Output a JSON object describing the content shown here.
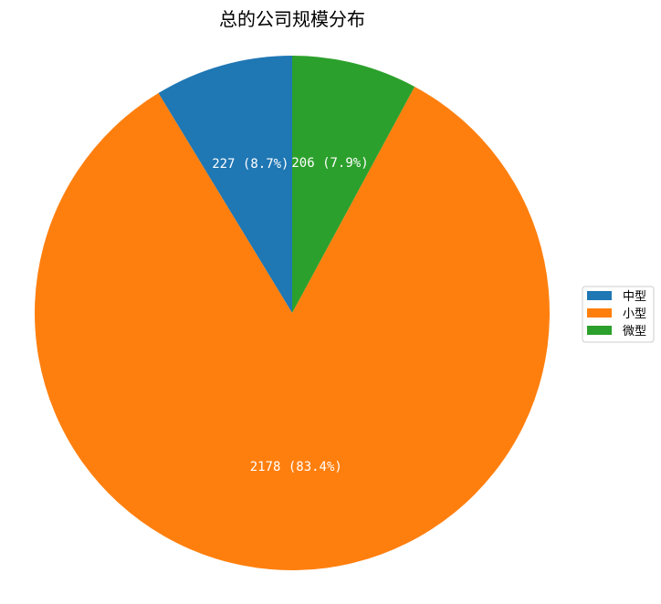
{
  "chart_data": {
    "type": "pie",
    "title": "总的公司规模分布",
    "categories": [
      "中型",
      "小型",
      "微型"
    ],
    "values": [
      227,
      2178,
      206
    ],
    "labels": [
      "227 (8.7%)",
      "2178 (83.4%)",
      "206 (7.9%)"
    ],
    "colors": [
      "#1f77b4",
      "#ff7f0e",
      "#2ca02c"
    ],
    "start_angle_deg": 90,
    "direction": "counterclockwise",
    "legend": {
      "placement": "center-right",
      "entries": [
        "中型",
        "小型",
        "微型"
      ]
    }
  }
}
